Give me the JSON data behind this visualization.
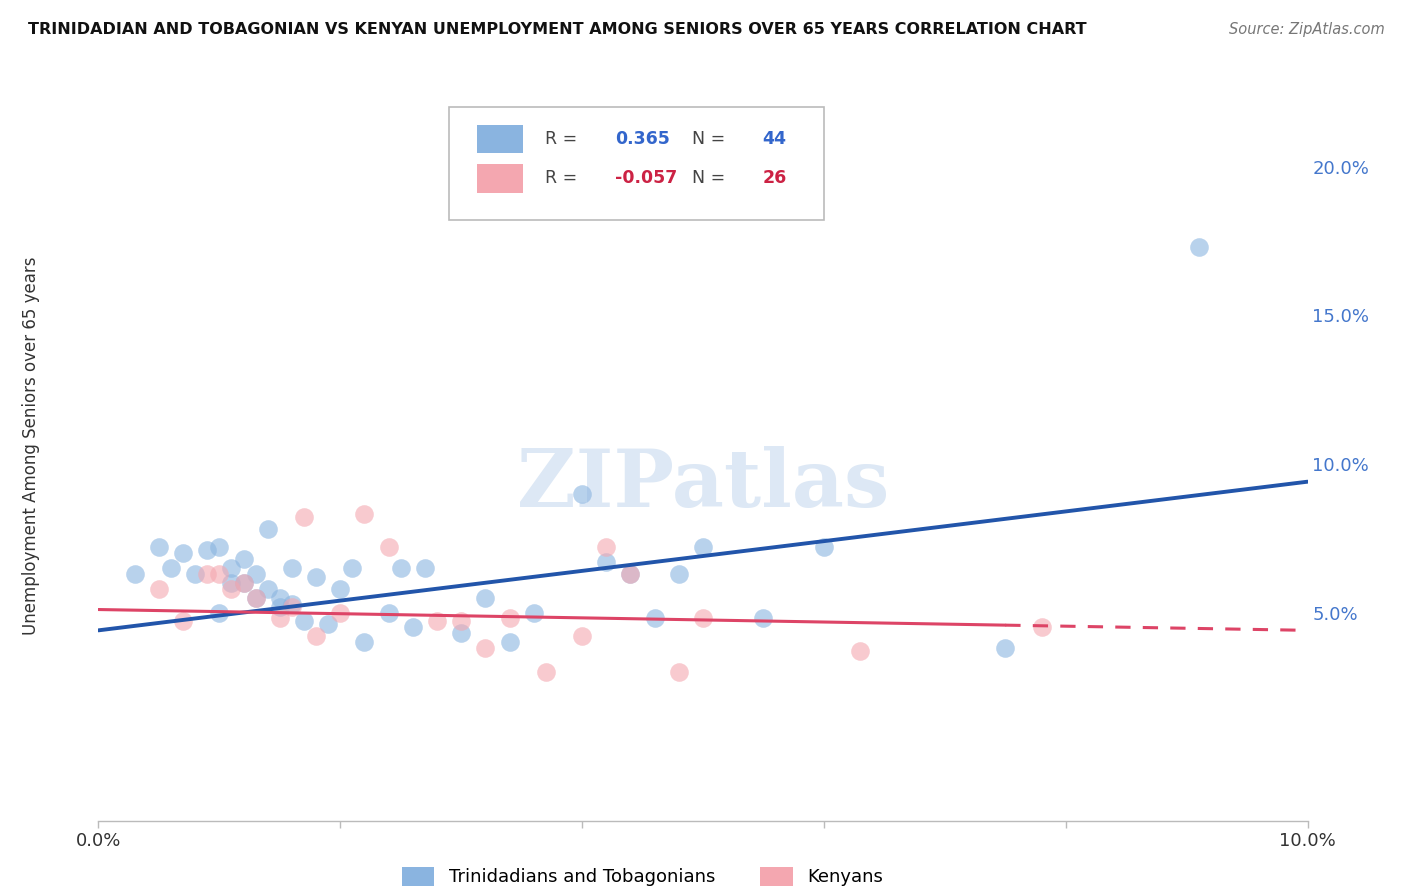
{
  "title": "TRINIDADIAN AND TOBAGONIAN VS KENYAN UNEMPLOYMENT AMONG SENIORS OVER 65 YEARS CORRELATION CHART",
  "source": "Source: ZipAtlas.com",
  "ylabel": "Unemployment Among Seniors over 65 years",
  "xlim": [
    0.0,
    0.1
  ],
  "ylim": [
    -0.02,
    0.22
  ],
  "blue_color": "#8ab4e0",
  "pink_color": "#f4a7b0",
  "blue_line_color": "#2255aa",
  "pink_line_color": "#dd4466",
  "grid_color": "#cccccc",
  "watermark_color": "#dde8f5",
  "legend_R_blue": "0.365",
  "legend_N_blue": "44",
  "legend_R_pink": "-0.057",
  "legend_N_pink": "26",
  "blue_scatter_x": [
    0.003,
    0.005,
    0.006,
    0.007,
    0.008,
    0.009,
    0.01,
    0.01,
    0.011,
    0.011,
    0.012,
    0.012,
    0.013,
    0.013,
    0.014,
    0.014,
    0.015,
    0.015,
    0.016,
    0.016,
    0.017,
    0.018,
    0.019,
    0.02,
    0.021,
    0.022,
    0.024,
    0.025,
    0.026,
    0.027,
    0.03,
    0.032,
    0.034,
    0.036,
    0.04,
    0.042,
    0.044,
    0.046,
    0.048,
    0.05,
    0.055,
    0.06,
    0.075,
    0.091
  ],
  "blue_scatter_y": [
    0.063,
    0.072,
    0.065,
    0.07,
    0.063,
    0.071,
    0.072,
    0.05,
    0.06,
    0.065,
    0.068,
    0.06,
    0.063,
    0.055,
    0.058,
    0.078,
    0.052,
    0.055,
    0.053,
    0.065,
    0.047,
    0.062,
    0.046,
    0.058,
    0.065,
    0.04,
    0.05,
    0.065,
    0.045,
    0.065,
    0.043,
    0.055,
    0.04,
    0.05,
    0.09,
    0.067,
    0.063,
    0.048,
    0.063,
    0.072,
    0.048,
    0.072,
    0.038,
    0.173
  ],
  "pink_scatter_x": [
    0.005,
    0.007,
    0.009,
    0.01,
    0.011,
    0.012,
    0.013,
    0.015,
    0.016,
    0.017,
    0.018,
    0.02,
    0.022,
    0.024,
    0.028,
    0.03,
    0.032,
    0.034,
    0.037,
    0.04,
    0.042,
    0.044,
    0.048,
    0.05,
    0.063,
    0.078
  ],
  "pink_scatter_y": [
    0.058,
    0.047,
    0.063,
    0.063,
    0.058,
    0.06,
    0.055,
    0.048,
    0.052,
    0.082,
    0.042,
    0.05,
    0.083,
    0.072,
    0.047,
    0.047,
    0.038,
    0.048,
    0.03,
    0.042,
    0.072,
    0.063,
    0.03,
    0.048,
    0.037,
    0.045
  ],
  "blue_line_x": [
    0.0,
    0.1
  ],
  "blue_line_y": [
    0.044,
    0.094
  ],
  "pink_line_x": [
    0.0,
    0.1
  ],
  "pink_line_y": [
    0.051,
    0.044
  ],
  "bg_color": "#ffffff"
}
